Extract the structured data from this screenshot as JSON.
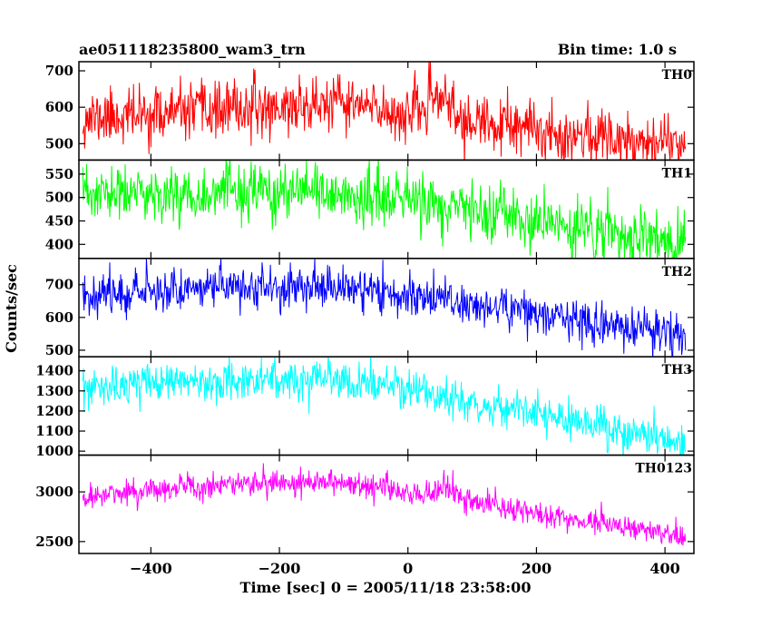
{
  "header": {
    "title": "ae051118235800_wam3_trn",
    "bin_time": "Bin time: 1.0 s"
  },
  "chart_data": {
    "type": "line",
    "title": "ae051118235800_wam3_trn",
    "xlabel": "Time [sec] 0 = 2005/11/18 23:58:00",
    "ylabel": "Counts/sec",
    "xlim": [
      -512,
      445
    ],
    "x_ticks": [
      -400,
      -200,
      0,
      200,
      400
    ],
    "x_tick_labels": [
      "−400",
      "−200",
      "0",
      "200",
      "400"
    ],
    "x_sampling": {
      "start": -506,
      "end": 432,
      "step": 1
    },
    "grid": false,
    "panels": [
      {
        "name": "TH0",
        "color": "#ff0000",
        "ylim": [
          455,
          725
        ],
        "ticks": [
          500,
          600,
          700
        ],
        "trend": {
          "x": [
            -506,
            -400,
            -200,
            -100,
            0,
            35,
            55,
            80,
            200,
            300,
            432
          ],
          "y": [
            570,
            580,
            600,
            610,
            580,
            605,
            640,
            560,
            535,
            520,
            505
          ]
        },
        "noise": 38,
        "seed": 11
      },
      {
        "name": "TH1",
        "color": "#00ff00",
        "ylim": [
          370,
          580
        ],
        "ticks": [
          400,
          450,
          500,
          550
        ],
        "trend": {
          "x": [
            -506,
            -300,
            -100,
            0,
            100,
            200,
            300,
            432
          ],
          "y": [
            505,
            510,
            505,
            495,
            470,
            445,
            425,
            400
          ]
        },
        "noise": 30,
        "seed": 23
      },
      {
        "name": "TH2",
        "color": "#0000ff",
        "ylim": [
          480,
          780
        ],
        "ticks": [
          500,
          600,
          700
        ],
        "trend": {
          "x": [
            -506,
            -300,
            -100,
            0,
            100,
            200,
            300,
            432
          ],
          "y": [
            670,
            695,
            690,
            670,
            640,
            615,
            580,
            540
          ]
        },
        "noise": 32,
        "seed": 37
      },
      {
        "name": "TH3",
        "color": "#00ffff",
        "ylim": [
          980,
          1470
        ],
        "ticks": [
          1000,
          1100,
          1200,
          1300,
          1400
        ],
        "trend": {
          "x": [
            -506,
            -400,
            -250,
            -100,
            0,
            100,
            200,
            300,
            432
          ],
          "y": [
            1300,
            1340,
            1360,
            1345,
            1310,
            1240,
            1180,
            1120,
            1040
          ]
        },
        "noise": 48,
        "seed": 53
      },
      {
        "name": "TH0123",
        "color": "#ff00ff",
        "ylim": [
          2380,
          3370
        ],
        "ticks": [
          2500,
          3000
        ],
        "trend": {
          "x": [
            -506,
            -400,
            -200,
            -100,
            0,
            40,
            60,
            100,
            200,
            300,
            432
          ],
          "y": [
            2940,
            3020,
            3110,
            3100,
            2980,
            3000,
            3030,
            2900,
            2780,
            2690,
            2560
          ]
        },
        "noise": 65,
        "seed": 71
      }
    ]
  }
}
